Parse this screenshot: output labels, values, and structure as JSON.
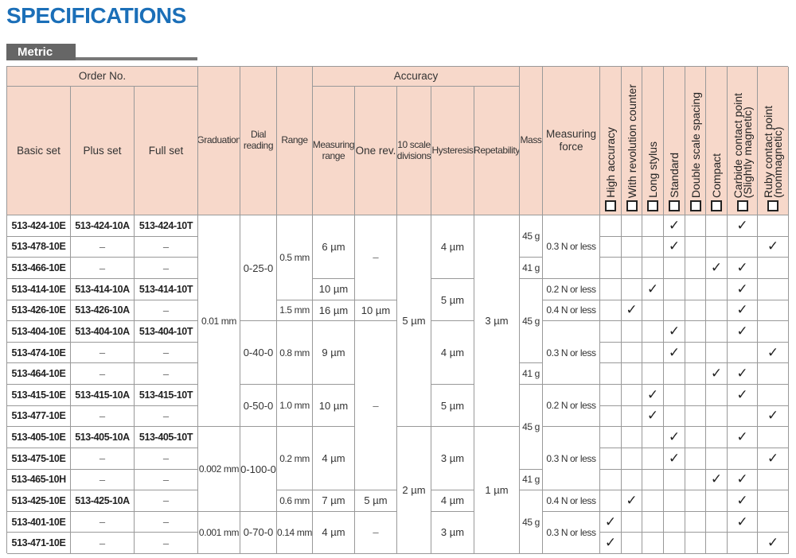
{
  "header": {
    "title": "SPECIFICATIONS",
    "tab": "Metric"
  },
  "table": {
    "group_headers": [
      "Order No.",
      "Accuracy"
    ],
    "columns": [
      "Basic set",
      "Plus set",
      "Full set",
      "Graduation",
      "Dial reading",
      "Range",
      "Measuring range",
      "One rev.",
      "10 scale divisions",
      "Hysteresis",
      "Repetability",
      "Mass",
      "Measuring force"
    ],
    "features": [
      [
        "High accuracy"
      ],
      [
        "With revolution counter"
      ],
      [
        "Long stylus"
      ],
      [
        "Standard"
      ],
      [
        "Double scale spacing"
      ],
      [
        "Compact"
      ],
      [
        "Carbide contact point",
        "(Slightly magnetic)"
      ],
      [
        "Ruby contact point",
        "(nonmagnetic)"
      ]
    ],
    "rows": [
      [
        "513-424-10E",
        "513-424-10A",
        "513-424-10T",
        "0.01 mm",
        "0-25-0",
        "0.5 mm",
        "6 µm",
        "–",
        "5 µm",
        "4 µm",
        "3 µm",
        "45 g",
        "0.3 N or less",
        null,
        null,
        null,
        "✓",
        null,
        null,
        "✓",
        null
      ],
      [
        "513-478-10E",
        "–",
        "–",
        null,
        null,
        null,
        null,
        null,
        null,
        null,
        null,
        null,
        null,
        null,
        null,
        null,
        "✓",
        null,
        null,
        null,
        "✓"
      ],
      [
        "513-466-10E",
        "–",
        "–",
        null,
        null,
        null,
        null,
        null,
        null,
        null,
        null,
        "41 g",
        null,
        null,
        null,
        null,
        null,
        null,
        "✓",
        "✓",
        null
      ],
      [
        "513-414-10E",
        "513-414-10A",
        "513-414-10T",
        null,
        null,
        null,
        "10 µm",
        null,
        null,
        "5 µm",
        null,
        "45 g",
        "0.2 N or less",
        null,
        null,
        "✓",
        null,
        null,
        null,
        "✓",
        null
      ],
      [
        "513-426-10E",
        "513-426-10A",
        "–",
        null,
        null,
        "1.5 mm",
        "16 µm",
        "10 µm",
        null,
        null,
        null,
        null,
        "0.4 N or less",
        null,
        "✓",
        null,
        null,
        null,
        null,
        "✓",
        null
      ],
      [
        "513-404-10E",
        "513-404-10A",
        "513-404-10T",
        null,
        "0-40-0",
        "0.8 mm",
        "9 µm",
        "–",
        null,
        "4 µm",
        null,
        null,
        "0.3 N or less",
        null,
        null,
        null,
        "✓",
        null,
        null,
        "✓",
        null
      ],
      [
        "513-474-10E",
        "–",
        "–",
        null,
        null,
        null,
        null,
        null,
        null,
        null,
        null,
        null,
        null,
        null,
        null,
        null,
        "✓",
        null,
        null,
        null,
        "✓"
      ],
      [
        "513-464-10E",
        "–",
        "–",
        null,
        null,
        null,
        null,
        null,
        null,
        null,
        null,
        "41 g",
        null,
        null,
        null,
        null,
        null,
        null,
        "✓",
        "✓",
        null
      ],
      [
        "513-415-10E",
        "513-415-10A",
        "513-415-10T",
        null,
        "0-50-0",
        "1.0 mm",
        "10 µm",
        null,
        null,
        "5 µm",
        null,
        "45 g",
        "0.2 N or less",
        null,
        null,
        "✓",
        null,
        null,
        null,
        "✓",
        null
      ],
      [
        "513-477-10E",
        "–",
        "–",
        null,
        null,
        null,
        null,
        null,
        null,
        null,
        null,
        null,
        null,
        null,
        null,
        "✓",
        null,
        null,
        null,
        null,
        "✓"
      ],
      [
        "513-405-10E",
        "513-405-10A",
        "513-405-10T",
        "0.002 mm",
        "0-100-0",
        "0.2 mm",
        "4 µm",
        null,
        "2 µm",
        "3 µm",
        "1 µm",
        null,
        "0.3 N or less",
        null,
        null,
        null,
        "✓",
        null,
        null,
        "✓",
        null
      ],
      [
        "513-475-10E",
        "–",
        "–",
        null,
        null,
        null,
        null,
        null,
        null,
        null,
        null,
        null,
        null,
        null,
        null,
        null,
        "✓",
        null,
        null,
        null,
        "✓"
      ],
      [
        "513-465-10H",
        "–",
        "–",
        null,
        null,
        null,
        null,
        null,
        null,
        null,
        null,
        "41 g",
        null,
        null,
        null,
        null,
        null,
        null,
        "✓",
        "✓",
        null
      ],
      [
        "513-425-10E",
        "513-425-10A",
        "–",
        null,
        null,
        "0.6 mm",
        "7 µm",
        "5 µm",
        null,
        "4 µm",
        null,
        "45 g",
        "0.4 N or less",
        null,
        "✓",
        null,
        null,
        null,
        null,
        "✓",
        null
      ],
      [
        "513-401-10E",
        "–",
        "–",
        "0.001 mm",
        "0-70-0",
        "0.14 mm",
        "4 µm",
        "–",
        null,
        "3 µm",
        null,
        null,
        "0.3 N or less",
        "✓",
        null,
        null,
        null,
        null,
        null,
        "✓",
        null
      ],
      [
        "513-471-10E",
        "–",
        "–",
        null,
        null,
        null,
        null,
        null,
        null,
        null,
        null,
        null,
        null,
        "✓",
        null,
        null,
        null,
        null,
        null,
        null,
        "✓"
      ]
    ]
  }
}
